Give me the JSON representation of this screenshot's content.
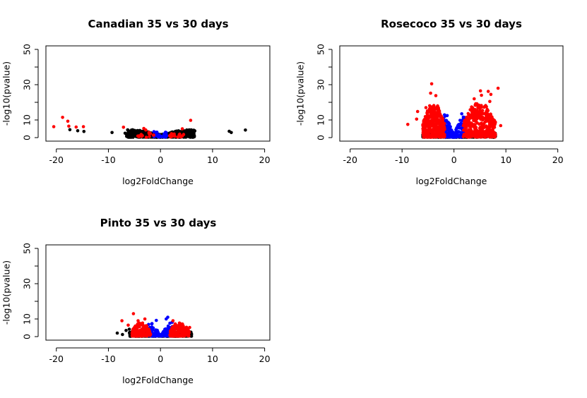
{
  "chart_data": [
    {
      "type": "scatter",
      "title": "Canadian 35 vs 30 days",
      "xlabel": "log2FoldChange",
      "ylabel": "-log10(pvalue)",
      "xlim": [
        -22,
        21
      ],
      "ylim": [
        -2,
        52
      ],
      "xticks": [
        "-20",
        "-10",
        "0",
        "10",
        "20"
      ],
      "yticks": [
        "0",
        "10",
        "30",
        "50"
      ],
      "colors": {
        "not_significant": "#000000",
        "significant_small_fc": "#0000ff",
        "significant_large_fc": "#ff0000"
      },
      "clusters": [
        {
          "color": "black",
          "xmin": -6.5,
          "xmax": 6.5,
          "ymax": 4.2,
          "count": 650,
          "seed": 11
        },
        {
          "color": "blue",
          "xmin": -1.3,
          "xmax": 1.3,
          "ymax": 4.5,
          "count": 30,
          "seed": 12
        },
        {
          "color": "red",
          "xmin": -4.5,
          "xmax": -1.2,
          "ymax": 5.0,
          "count": 14,
          "seed": 13
        },
        {
          "color": "red",
          "xmin": 1.2,
          "xmax": 5.0,
          "ymax": 5.0,
          "count": 14,
          "seed": 14
        }
      ],
      "points": [
        {
          "x": -20.5,
          "y": 6.2,
          "c": "red"
        },
        {
          "x": -18.8,
          "y": 11.5,
          "c": "red"
        },
        {
          "x": -17.8,
          "y": 9.3,
          "c": "red"
        },
        {
          "x": -17.6,
          "y": 6.5,
          "c": "red"
        },
        {
          "x": -16.2,
          "y": 6.0,
          "c": "red"
        },
        {
          "x": -14.8,
          "y": 6.2,
          "c": "red"
        },
        {
          "x": -7.1,
          "y": 5.9,
          "c": "red"
        },
        {
          "x": 5.8,
          "y": 9.8,
          "c": "red"
        },
        {
          "x": 4.2,
          "y": 5.0,
          "c": "red"
        },
        {
          "x": -3.2,
          "y": 5.2,
          "c": "red"
        },
        {
          "x": -17.4,
          "y": 4.5,
          "c": "black"
        },
        {
          "x": -15.9,
          "y": 3.9,
          "c": "black"
        },
        {
          "x": -14.7,
          "y": 3.5,
          "c": "black"
        },
        {
          "x": -9.3,
          "y": 2.9,
          "c": "black"
        },
        {
          "x": -6.8,
          "y": 2.5,
          "c": "black"
        },
        {
          "x": 6.6,
          "y": 3.8,
          "c": "black"
        },
        {
          "x": 13.2,
          "y": 3.6,
          "c": "black"
        },
        {
          "x": 13.6,
          "y": 2.9,
          "c": "black"
        },
        {
          "x": 16.3,
          "y": 4.3,
          "c": "black"
        },
        {
          "x": 0.3,
          "y": 0.3,
          "c": "black"
        }
      ]
    },
    {
      "type": "scatter",
      "title": "Rosecoco 35 vs 30 days",
      "xlabel": "log2FoldChange",
      "ylabel": "-log10(pvalue)",
      "xlim": [
        -22,
        21
      ],
      "ylim": [
        -2,
        52
      ],
      "xticks": [
        "-20",
        "-10",
        "0",
        "10",
        "20"
      ],
      "yticks": [
        "0",
        "10",
        "30",
        "50"
      ],
      "colors": {
        "not_significant": "#000000",
        "significant_small_fc": "#0000ff",
        "significant_large_fc": "#ff0000"
      },
      "clusters": [
        {
          "color": "black",
          "xmin": -6.0,
          "xmax": 8.0,
          "ymax": 2.4,
          "count": 600,
          "seed": 21
        },
        {
          "color": "blue",
          "xmin": -2.0,
          "xmax": 2.0,
          "ymax": 13.0,
          "count": 170,
          "seed": 22
        },
        {
          "color": "red",
          "xmin": -6.0,
          "xmax": -1.8,
          "ymax": 18.0,
          "count": 340,
          "seed": 23
        },
        {
          "color": "red",
          "xmin": 1.8,
          "xmax": 8.0,
          "ymax": 19.0,
          "count": 360,
          "seed": 24
        }
      ],
      "points": [
        {
          "x": -4.3,
          "y": 30.5,
          "c": "red"
        },
        {
          "x": -4.5,
          "y": 25.2,
          "c": "red"
        },
        {
          "x": -3.5,
          "y": 23.8,
          "c": "red"
        },
        {
          "x": 8.5,
          "y": 28.0,
          "c": "red"
        },
        {
          "x": 5.1,
          "y": 26.5,
          "c": "red"
        },
        {
          "x": 6.6,
          "y": 26.2,
          "c": "red"
        },
        {
          "x": 5.3,
          "y": 24.0,
          "c": "red"
        },
        {
          "x": 7.1,
          "y": 24.5,
          "c": "red"
        },
        {
          "x": 3.9,
          "y": 22.0,
          "c": "red"
        },
        {
          "x": 6.9,
          "y": 20.5,
          "c": "red"
        },
        {
          "x": -7.0,
          "y": 14.8,
          "c": "red"
        },
        {
          "x": -5.4,
          "y": 17.0,
          "c": "red"
        },
        {
          "x": -7.2,
          "y": 10.5,
          "c": "red"
        },
        {
          "x": -8.9,
          "y": 7.5,
          "c": "red"
        },
        {
          "x": 9.0,
          "y": 6.8,
          "c": "red"
        },
        {
          "x": 6.4,
          "y": 16.0,
          "c": "red"
        },
        {
          "x": -5.2,
          "y": 14.0,
          "c": "red"
        },
        {
          "x": 7.6,
          "y": 1.5,
          "c": "black"
        },
        {
          "x": 1.5,
          "y": 13.5,
          "c": "blue"
        },
        {
          "x": -1.3,
          "y": 12.5,
          "c": "blue"
        }
      ]
    },
    {
      "type": "scatter",
      "title": "Pinto 35 vs 30 days",
      "xlabel": "log2FoldChange",
      "ylabel": "-log10(pvalue)",
      "xlim": [
        -22,
        21
      ],
      "ylim": [
        -2,
        52
      ],
      "xticks": [
        "-20",
        "-10",
        "0",
        "10",
        "20"
      ],
      "yticks": [
        "0",
        "10",
        "30",
        "50"
      ],
      "colors": {
        "not_significant": "#000000",
        "significant_small_fc": "#0000ff",
        "significant_large_fc": "#ff0000"
      },
      "clusters": [
        {
          "color": "black",
          "xmin": -6.0,
          "xmax": 6.0,
          "ymax": 2.6,
          "count": 550,
          "seed": 31
        },
        {
          "color": "blue",
          "xmin": -2.3,
          "xmax": 2.3,
          "ymax": 8.5,
          "count": 110,
          "seed": 32
        },
        {
          "color": "red",
          "xmin": -5.5,
          "xmax": -1.8,
          "ymax": 7.5,
          "count": 150,
          "seed": 33
        },
        {
          "color": "red",
          "xmin": 1.8,
          "xmax": 5.5,
          "ymax": 7.5,
          "count": 150,
          "seed": 34
        }
      ],
      "points": [
        {
          "x": -5.2,
          "y": 13.0,
          "c": "red"
        },
        {
          "x": -7.4,
          "y": 9.0,
          "c": "red"
        },
        {
          "x": -6.2,
          "y": 6.5,
          "c": "red"
        },
        {
          "x": -3.0,
          "y": 10.0,
          "c": "red"
        },
        {
          "x": -4.3,
          "y": 9.0,
          "c": "red"
        },
        {
          "x": 5.6,
          "y": 5.2,
          "c": "red"
        },
        {
          "x": 2.4,
          "y": 9.0,
          "c": "red"
        },
        {
          "x": 1.4,
          "y": 11.0,
          "c": "blue"
        },
        {
          "x": 1.1,
          "y": 10.0,
          "c": "blue"
        },
        {
          "x": -0.8,
          "y": 9.2,
          "c": "blue"
        },
        {
          "x": -8.3,
          "y": 2.0,
          "c": "black"
        },
        {
          "x": -7.3,
          "y": 1.2,
          "c": "black"
        },
        {
          "x": -6.6,
          "y": 3.5,
          "c": "black"
        },
        {
          "x": -6.0,
          "y": 4.2,
          "c": "black"
        }
      ]
    }
  ]
}
